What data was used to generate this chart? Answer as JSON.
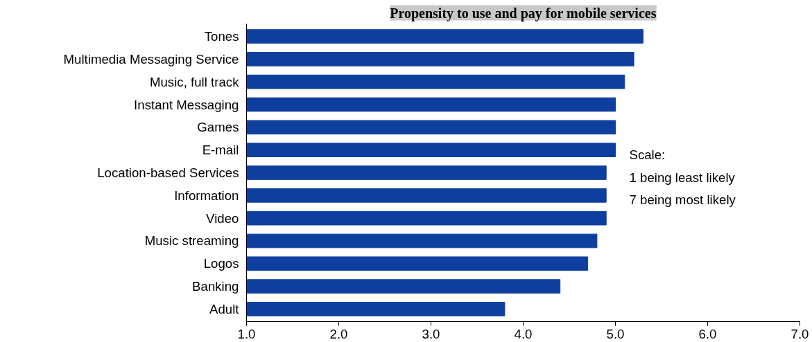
{
  "chart_data": {
    "type": "bar",
    "orientation": "horizontal",
    "title": "Propensity to use and pay for mobile services",
    "categories": [
      "Tones",
      "Multimedia Messaging Service",
      "Music, full track",
      "Instant Messaging",
      "Games",
      "E-mail",
      "Location-based Services",
      "Information",
      "Video",
      "Music streaming",
      "Logos",
      "Banking",
      "Adult"
    ],
    "values": [
      5.3,
      5.2,
      5.1,
      5.0,
      5.0,
      5.0,
      4.9,
      4.9,
      4.9,
      4.8,
      4.7,
      4.4,
      3.8
    ],
    "color": "#0e3f9e",
    "xlim": [
      1,
      7
    ],
    "xticks": [
      {
        "value": 1,
        "label": "1.0"
      },
      {
        "value": 2,
        "label": "2.0"
      },
      {
        "value": 3,
        "label": "3.0"
      },
      {
        "value": 4,
        "label": "4.0"
      },
      {
        "value": 5,
        "label": "5.0"
      },
      {
        "value": 6,
        "label": "6.0"
      },
      {
        "value": 7,
        "label": "7.0"
      }
    ],
    "grid": false,
    "annotations": [
      "Scale:",
      "1 being least likely",
      "7 being most likely"
    ]
  }
}
